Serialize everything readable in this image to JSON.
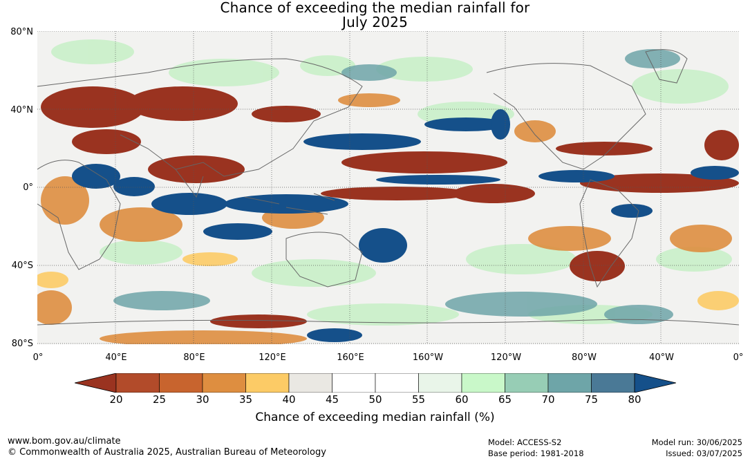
{
  "title_line1": "Chance of exceeding the median rainfall for",
  "title_line2": "July 2025",
  "lat_labels": [
    "80°N",
    "40°N",
    "0°",
    "40°S",
    "80°S"
  ],
  "lon_labels": [
    "0°",
    "40°E",
    "80°E",
    "120°E",
    "160°E",
    "160°W",
    "120°W",
    "80°W",
    "40°W",
    "0°"
  ],
  "colorbar": {
    "ticks": [
      "20",
      "25",
      "30",
      "35",
      "40",
      "45",
      "50",
      "55",
      "60",
      "65",
      "70",
      "75",
      "80"
    ],
    "colors": [
      "#9a3320",
      "#b24b2a",
      "#c8642e",
      "#de8e40",
      "#fccb66",
      "#eae8e3",
      "#ffffff",
      "#ffffff",
      "#e9f5e9",
      "#c9f8c9",
      "#97cdb5",
      "#6ea5a8",
      "#4a7996",
      "#15508a"
    ],
    "label": "Chance of exceeding median rainfall (%)"
  },
  "footer": {
    "website": "www.bom.gov.au/climate",
    "copyright": "© Commonwealth of Australia 2025, Australian Bureau of Meteorology",
    "model": "Model: ACCESS-S2",
    "base_period": "Base period: 1981-2018",
    "model_run": "Model run: 30/06/2025",
    "issued": "Issued: 03/07/2025"
  }
}
